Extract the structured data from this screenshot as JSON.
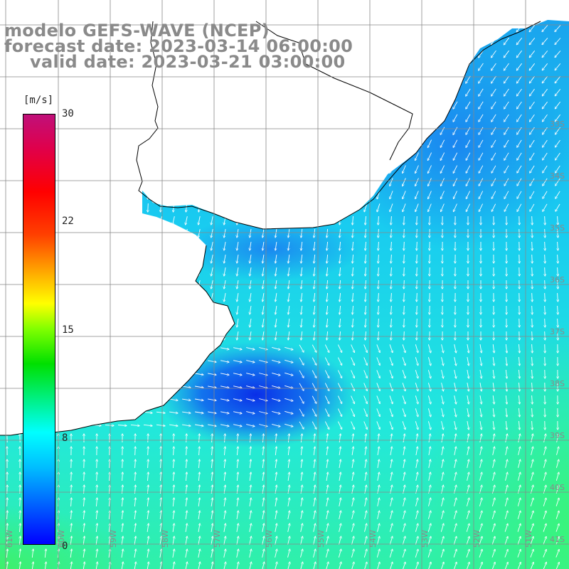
{
  "title": {
    "model": "modelo GEFS-WAVE (NCEP)",
    "forecast": "forecast date: 2023-03-14 06:00:00",
    "valid": "valid date: 2023-03-21 03:00:00"
  },
  "colorbar": {
    "units": "[m/s]",
    "ticks": [
      "30",
      "22",
      "15",
      "8",
      "0"
    ],
    "tick_values": [
      30,
      22,
      15,
      8,
      0
    ],
    "min": 0,
    "max": 30,
    "colors": [
      "#0000ff",
      "#00bfff",
      "#00ffff",
      "#00e000",
      "#7fff00",
      "#ffff00",
      "#ffa000",
      "#ff0000",
      "#c0107a"
    ]
  },
  "map": {
    "land_color": "#ffffff",
    "grid_color": "#888888",
    "coast_color": "#000000",
    "arrow_color": "#ffffff",
    "lat_labels": [
      "33S",
      "34S",
      "35S",
      "36S",
      "37S",
      "38S",
      "39S",
      "40S",
      "41S"
    ],
    "lon_labels": [
      "61W",
      "60W",
      "59W",
      "58W",
      "57W",
      "56W",
      "55W",
      "54W",
      "53W",
      "52W",
      "51W"
    ]
  }
}
